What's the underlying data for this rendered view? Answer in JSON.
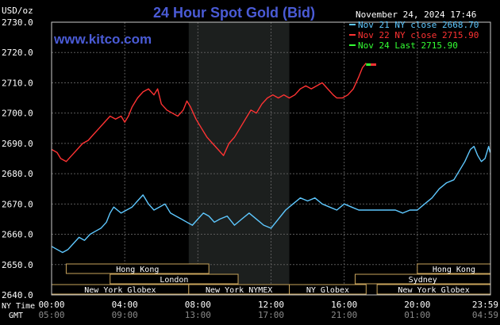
{
  "chart_data": {
    "type": "line",
    "title": "24 Hour Spot Gold (Bid)",
    "ylabel": "USD/oz",
    "ylim": [
      2640,
      2730
    ],
    "yticks": [
      2640,
      2650,
      2660,
      2670,
      2680,
      2690,
      2700,
      2710,
      2720,
      2730
    ],
    "ytick_labels": [
      "2640.0",
      "2650.0",
      "2660.0",
      "2670.0",
      "2680.0",
      "2690.0",
      "2700.0",
      "2710.0",
      "2720.0",
      "2730.0"
    ],
    "xlim_hours": [
      0,
      24
    ],
    "xticks_hours": [
      0,
      4,
      8,
      12,
      16,
      20,
      24
    ],
    "xtick_labels_ny": [
      "00:00",
      "04:00",
      "08:00",
      "12:00",
      "16:00",
      "20:00",
      "23:59"
    ],
    "xtick_labels_gmt": [
      "05:00",
      "09:00",
      "13:00",
      "17:00",
      "21:00",
      "01:00",
      "04:59"
    ],
    "x_row_labels": {
      "ny": "NY Time",
      "gmt": "GMT"
    },
    "timestamp": "November 24, 2024 17:46",
    "website": "www.kitco.com",
    "grid": true,
    "highlight_hours": [
      7.5,
      13.0
    ],
    "series": [
      {
        "name": "Nov 21 NY close 2668.70",
        "color": "#5ec8ff",
        "points": [
          [
            0.0,
            2656
          ],
          [
            0.3,
            2655
          ],
          [
            0.6,
            2654
          ],
          [
            0.9,
            2655
          ],
          [
            1.2,
            2657
          ],
          [
            1.5,
            2659
          ],
          [
            1.8,
            2658
          ],
          [
            2.1,
            2660
          ],
          [
            2.4,
            2661
          ],
          [
            2.7,
            2662
          ],
          [
            3.0,
            2664
          ],
          [
            3.2,
            2667
          ],
          [
            3.4,
            2669
          ],
          [
            3.6,
            2668
          ],
          [
            3.8,
            2667
          ],
          [
            4.1,
            2668
          ],
          [
            4.4,
            2669
          ],
          [
            4.7,
            2671
          ],
          [
            5.0,
            2673
          ],
          [
            5.3,
            2670
          ],
          [
            5.6,
            2668
          ],
          [
            5.9,
            2669
          ],
          [
            6.2,
            2670
          ],
          [
            6.5,
            2667
          ],
          [
            6.8,
            2666
          ],
          [
            7.1,
            2665
          ],
          [
            7.4,
            2664
          ],
          [
            7.7,
            2663
          ],
          [
            8.0,
            2665
          ],
          [
            8.3,
            2667
          ],
          [
            8.6,
            2666
          ],
          [
            8.9,
            2664
          ],
          [
            9.2,
            2665
          ],
          [
            9.6,
            2666
          ],
          [
            10.0,
            2663
          ],
          [
            10.4,
            2665
          ],
          [
            10.8,
            2667
          ],
          [
            11.2,
            2665
          ],
          [
            11.6,
            2663
          ],
          [
            12.0,
            2662
          ],
          [
            12.4,
            2665
          ],
          [
            12.8,
            2668
          ],
          [
            13.2,
            2670
          ],
          [
            13.6,
            2672
          ],
          [
            14.0,
            2671
          ],
          [
            14.4,
            2672
          ],
          [
            14.8,
            2670
          ],
          [
            15.2,
            2669
          ],
          [
            15.6,
            2668
          ],
          [
            16.0,
            2670
          ],
          [
            16.4,
            2669
          ],
          [
            16.8,
            2668
          ],
          [
            17.2,
            2668
          ],
          [
            17.6,
            2668
          ],
          [
            18.0,
            2668
          ],
          [
            18.4,
            2668
          ],
          [
            18.8,
            2668
          ],
          [
            19.2,
            2667
          ],
          [
            19.6,
            2668
          ],
          [
            20.0,
            2668
          ],
          [
            20.4,
            2670
          ],
          [
            20.8,
            2672
          ],
          [
            21.2,
            2675
          ],
          [
            21.6,
            2677
          ],
          [
            22.0,
            2678
          ],
          [
            22.3,
            2681
          ],
          [
            22.6,
            2684
          ],
          [
            22.9,
            2688
          ],
          [
            23.1,
            2689
          ],
          [
            23.3,
            2686
          ],
          [
            23.5,
            2684
          ],
          [
            23.7,
            2685
          ],
          [
            23.8,
            2687
          ],
          [
            23.9,
            2689
          ],
          [
            23.98,
            2687
          ]
        ]
      },
      {
        "name": "Nov 22 NY close 2715.90",
        "color": "#ff3333",
        "points": [
          [
            0.0,
            2688
          ],
          [
            0.3,
            2687
          ],
          [
            0.5,
            2685
          ],
          [
            0.8,
            2684
          ],
          [
            1.1,
            2686
          ],
          [
            1.4,
            2688
          ],
          [
            1.7,
            2690
          ],
          [
            2.0,
            2691
          ],
          [
            2.3,
            2693
          ],
          [
            2.6,
            2695
          ],
          [
            2.9,
            2697
          ],
          [
            3.2,
            2699
          ],
          [
            3.5,
            2698
          ],
          [
            3.8,
            2699
          ],
          [
            4.0,
            2697
          ],
          [
            4.2,
            2699
          ],
          [
            4.4,
            2702
          ],
          [
            4.7,
            2705
          ],
          [
            5.0,
            2707
          ],
          [
            5.3,
            2708
          ],
          [
            5.6,
            2706
          ],
          [
            5.8,
            2708
          ],
          [
            6.0,
            2703
          ],
          [
            6.3,
            2701
          ],
          [
            6.6,
            2700
          ],
          [
            6.9,
            2699
          ],
          [
            7.2,
            2701
          ],
          [
            7.4,
            2704
          ],
          [
            7.6,
            2702
          ],
          [
            7.9,
            2698
          ],
          [
            8.2,
            2695
          ],
          [
            8.5,
            2692
          ],
          [
            8.8,
            2690
          ],
          [
            9.1,
            2688
          ],
          [
            9.4,
            2686
          ],
          [
            9.7,
            2690
          ],
          [
            10.0,
            2692
          ],
          [
            10.3,
            2695
          ],
          [
            10.6,
            2698
          ],
          [
            10.9,
            2701
          ],
          [
            11.2,
            2700
          ],
          [
            11.5,
            2703
          ],
          [
            11.8,
            2705
          ],
          [
            12.1,
            2706
          ],
          [
            12.4,
            2705
          ],
          [
            12.7,
            2706
          ],
          [
            13.0,
            2705
          ],
          [
            13.3,
            2706
          ],
          [
            13.6,
            2708
          ],
          [
            13.9,
            2709
          ],
          [
            14.2,
            2708
          ],
          [
            14.5,
            2709
          ],
          [
            14.8,
            2710
          ],
          [
            15.1,
            2708
          ],
          [
            15.4,
            2706
          ],
          [
            15.6,
            2705
          ],
          [
            15.9,
            2705
          ],
          [
            16.2,
            2706
          ],
          [
            16.5,
            2708
          ],
          [
            16.8,
            2712
          ],
          [
            17.0,
            2715
          ],
          [
            17.2,
            2716.5
          ]
        ]
      },
      {
        "name": "Nov 24 Last 2715.90",
        "color": "#33ff33",
        "points": [
          [
            17.2,
            2716.0
          ],
          [
            17.75,
            2716.0
          ]
        ]
      }
    ],
    "series_end_marker": {
      "series": 2,
      "color": "#ff3333",
      "from": 17.45,
      "to": 17.75
    },
    "sessions": {
      "row1": [
        {
          "label": "Hong Kong",
          "start": 0.8,
          "end": 8.6
        },
        {
          "label": "Hong Kong",
          "start": 20.0,
          "end": 24.2
        }
      ],
      "row2": [
        {
          "label": "London",
          "start": 3.2,
          "end": 10.2
        },
        {
          "label": "Sydney",
          "start": 16.6,
          "end": 24.2
        }
      ],
      "row3": [
        {
          "label": "New York Globex",
          "start": 0.0,
          "end": 7.5
        },
        {
          "label": "New York NYMEX",
          "start": 7.5,
          "end": 13.0
        },
        {
          "label": "NY Globex",
          "start": 13.0,
          "end": 17.2
        },
        {
          "label": "New York Globex",
          "start": 17.8,
          "end": 24.2
        }
      ]
    }
  }
}
